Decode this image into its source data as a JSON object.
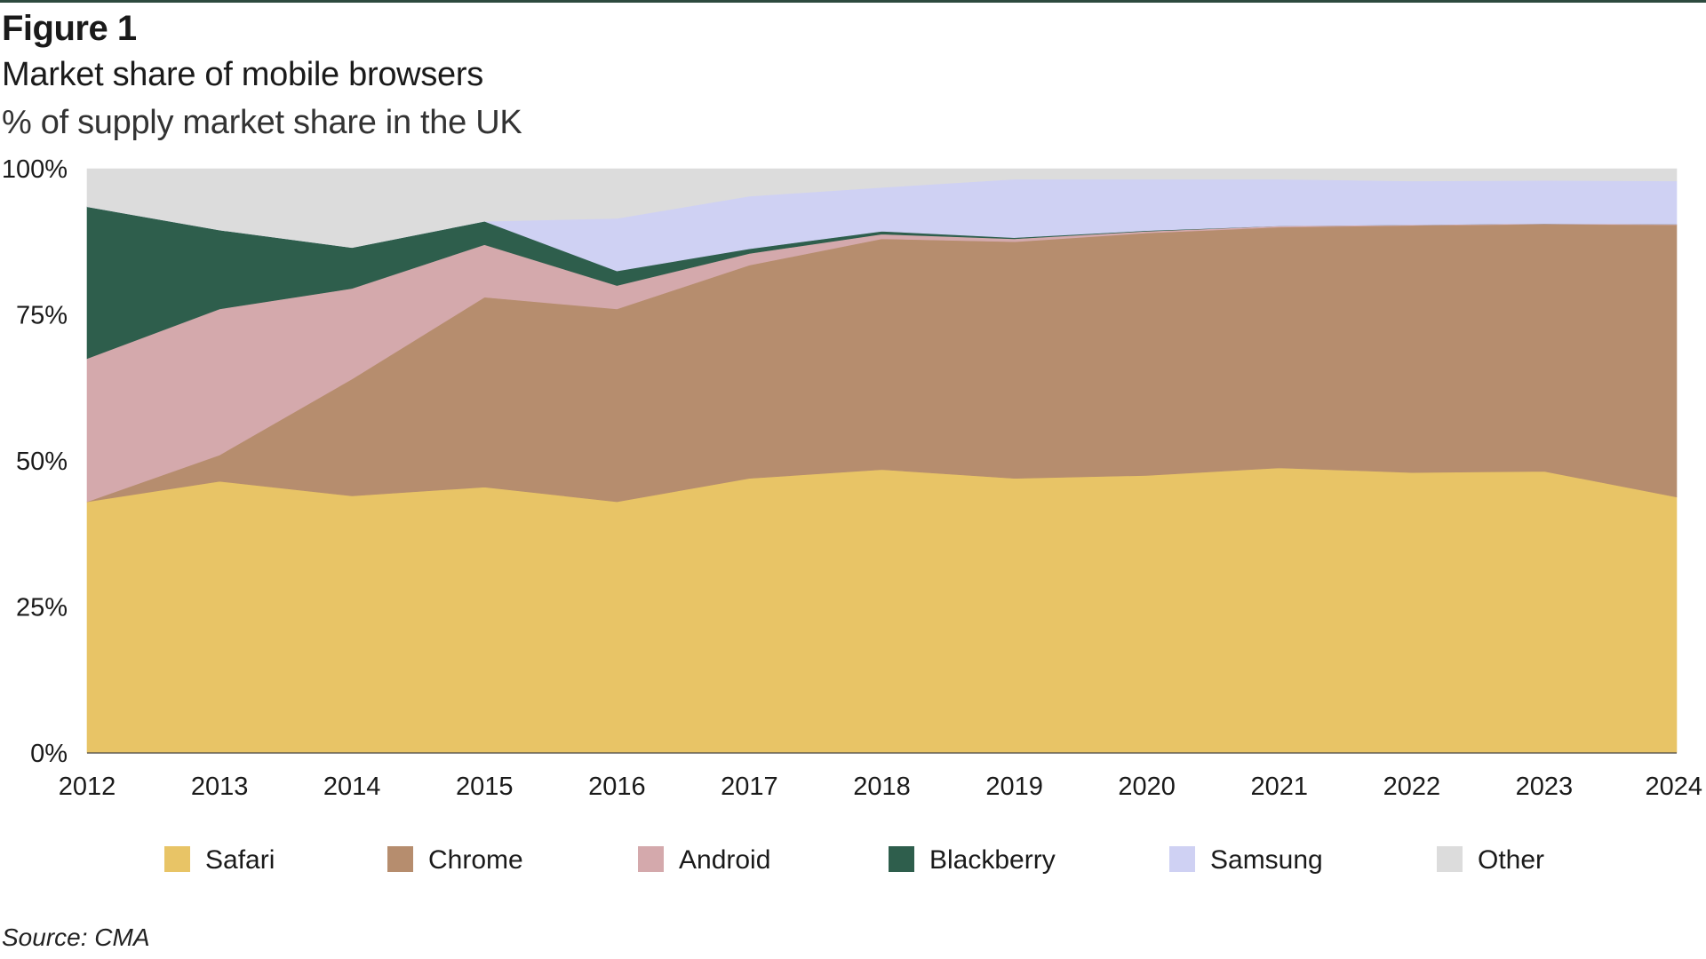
{
  "figure_label": "Figure 1",
  "title": "Market share of mobile browsers",
  "subtitle": "% of supply market share in the UK",
  "source": "Source: CMA",
  "chart_data": {
    "type": "area",
    "stacked": true,
    "x": [
      "2012",
      "2013",
      "2014",
      "2015",
      "2016",
      "2017",
      "2018",
      "2019",
      "2020",
      "2021",
      "2022",
      "2023",
      "2024"
    ],
    "y_ticks": [
      "0%",
      "25%",
      "50%",
      "75%",
      "100%"
    ],
    "ylim": [
      0,
      100
    ],
    "grid": false,
    "legend_position": "bottom",
    "series": [
      {
        "name": "Safari",
        "color": "#e8c466",
        "values": [
          43,
          46.5,
          44,
          45.5,
          43,
          47,
          48.5,
          47,
          47.5,
          48.8,
          48,
          48.2,
          43.8
        ]
      },
      {
        "name": "Chrome",
        "color": "#b68d6e",
        "values": [
          0,
          4.5,
          20,
          32.5,
          33,
          36.5,
          39.5,
          40.5,
          41.5,
          41.2,
          42.3,
          42.3,
          46.6
        ]
      },
      {
        "name": "Android",
        "color": "#d4a9ac",
        "values": [
          24.5,
          25,
          15.5,
          9,
          4,
          2,
          0.8,
          0.5,
          0.3,
          0.2,
          0.1,
          0.1,
          0.1
        ]
      },
      {
        "name": "Blackberry",
        "color": "#2e5e4c",
        "values": [
          26,
          13.5,
          7,
          4,
          2.5,
          0.8,
          0.5,
          0.2,
          0.1,
          0,
          0,
          0,
          0
        ]
      },
      {
        "name": "Samsung",
        "color": "#cfd1f3",
        "values": [
          0,
          0,
          0,
          0,
          9,
          9,
          7.5,
          10,
          8.8,
          8,
          7.5,
          7.4,
          7.4
        ]
      },
      {
        "name": "Other",
        "color": "#dcdcdc",
        "values": [
          6.5,
          10.5,
          13.5,
          9,
          8.5,
          4.7,
          3.2,
          1.8,
          1.8,
          1.8,
          2.1,
          2,
          2.1
        ]
      }
    ]
  }
}
